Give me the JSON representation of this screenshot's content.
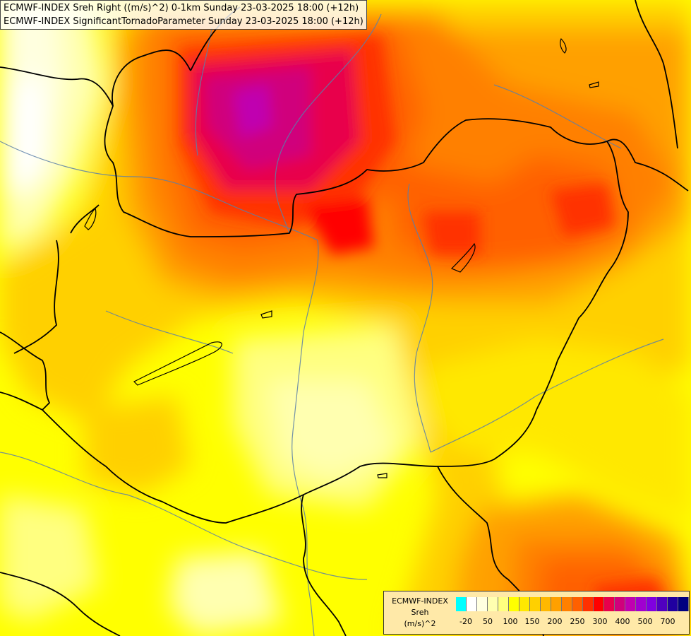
{
  "title": {
    "line1": "ECMWF-INDEX Sreh Right ((m/s)^2) 0-1km Sunday 23-03-2025 18:00 (+12h)",
    "line2": "ECMWF-INDEX SignificantTornadoParameter Sunday 23-03-2025 18:00 (+12h)"
  },
  "legend": {
    "model": "ECMWF-INDEX",
    "variable": "Sreh",
    "unit": "(m/s)^2",
    "colors": [
      "#00ffff",
      "#ffffff",
      "#ffffe0",
      "#ffffb0",
      "#ffff80",
      "#ffff00",
      "#ffe800",
      "#ffd000",
      "#ffb800",
      "#ffa000",
      "#ff8000",
      "#ff6000",
      "#ff3000",
      "#ff0000",
      "#e8004c",
      "#d0007c",
      "#c000b0",
      "#a000d0",
      "#8000e0",
      "#5000c0",
      "#2000a0",
      "#000080"
    ],
    "ticks": [
      "-20",
      "50",
      "100",
      "150",
      "200",
      "250",
      "300",
      "400",
      "500",
      "700"
    ]
  }
}
